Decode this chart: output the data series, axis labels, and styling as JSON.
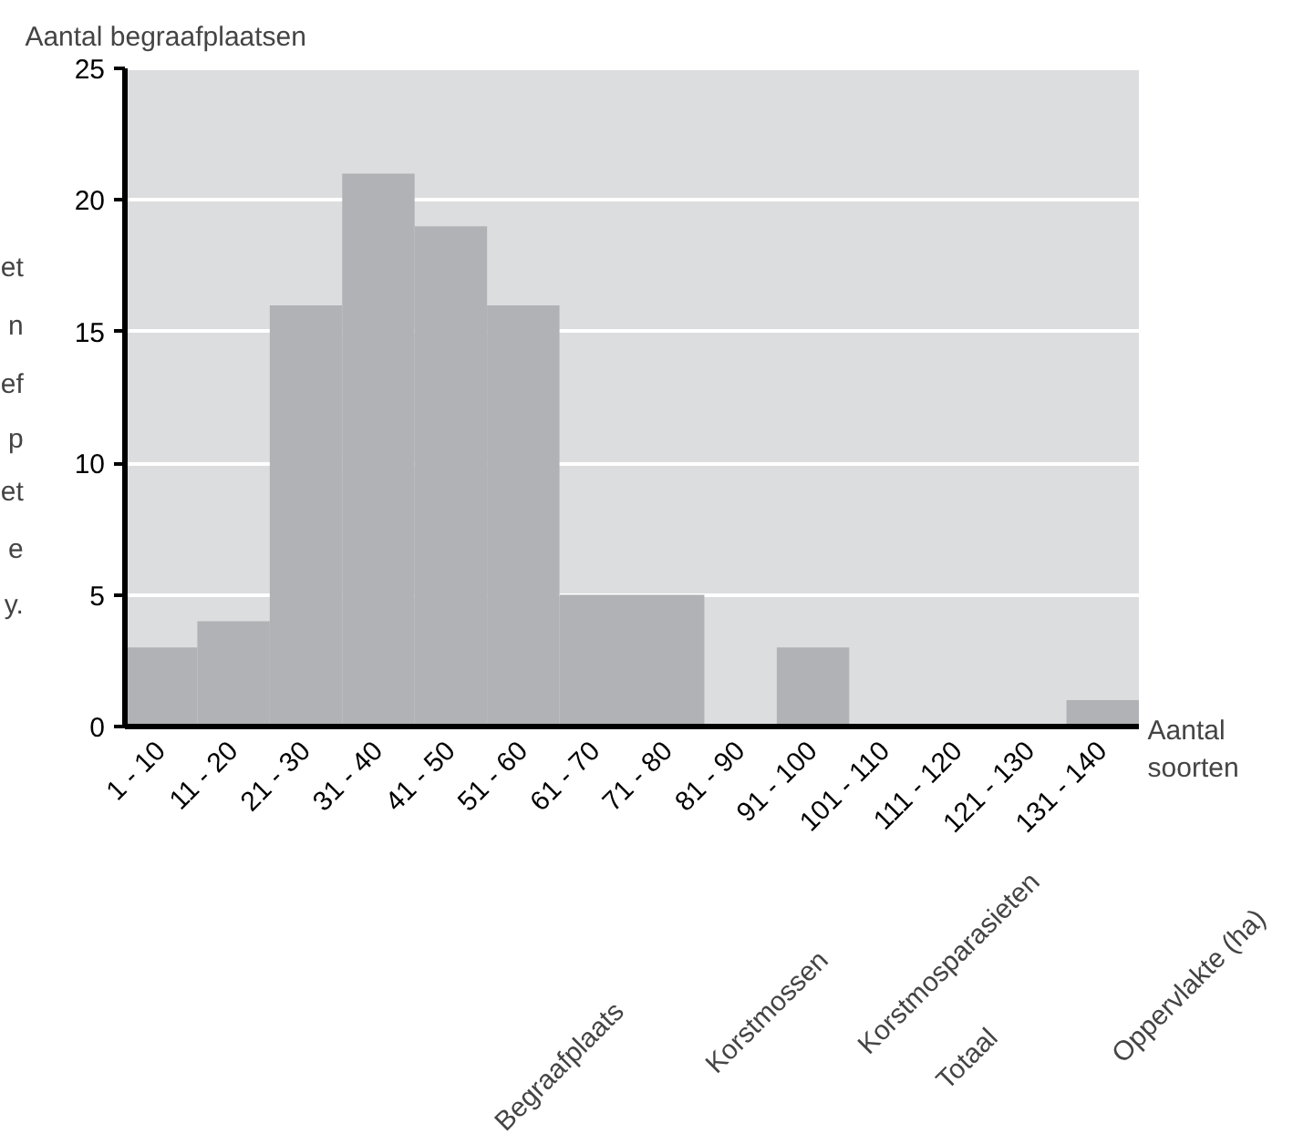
{
  "chart_data": {
    "type": "bar",
    "ylabel": "Aantal begraafplaatsen",
    "xlabel": "Aantal soorten",
    "categories": [
      "1 - 10",
      "11 - 20",
      "21 - 30",
      "31 - 40",
      "41 - 50",
      "51 - 60",
      "61 - 70",
      "71 - 80",
      "81 - 90",
      "91 - 100",
      "101 - 110",
      "111 - 120",
      "121 - 130",
      "131 - 140"
    ],
    "values": [
      3,
      4,
      16,
      21,
      19,
      16,
      5,
      5,
      0,
      3,
      0,
      0,
      0,
      1
    ],
    "color": "#b1b2b5",
    "ylim": [
      0,
      25
    ],
    "yticks": [
      0,
      5,
      10,
      15,
      20,
      25
    ],
    "grid": "y",
    "annotations": [
      "et",
      "n",
      "ef",
      "p",
      "et",
      "e",
      "y.",
      "Begraafplaats",
      "Korstmossen",
      "Korstmosparasieten",
      "Totaal",
      "Oppervlakte (ha)"
    ]
  }
}
